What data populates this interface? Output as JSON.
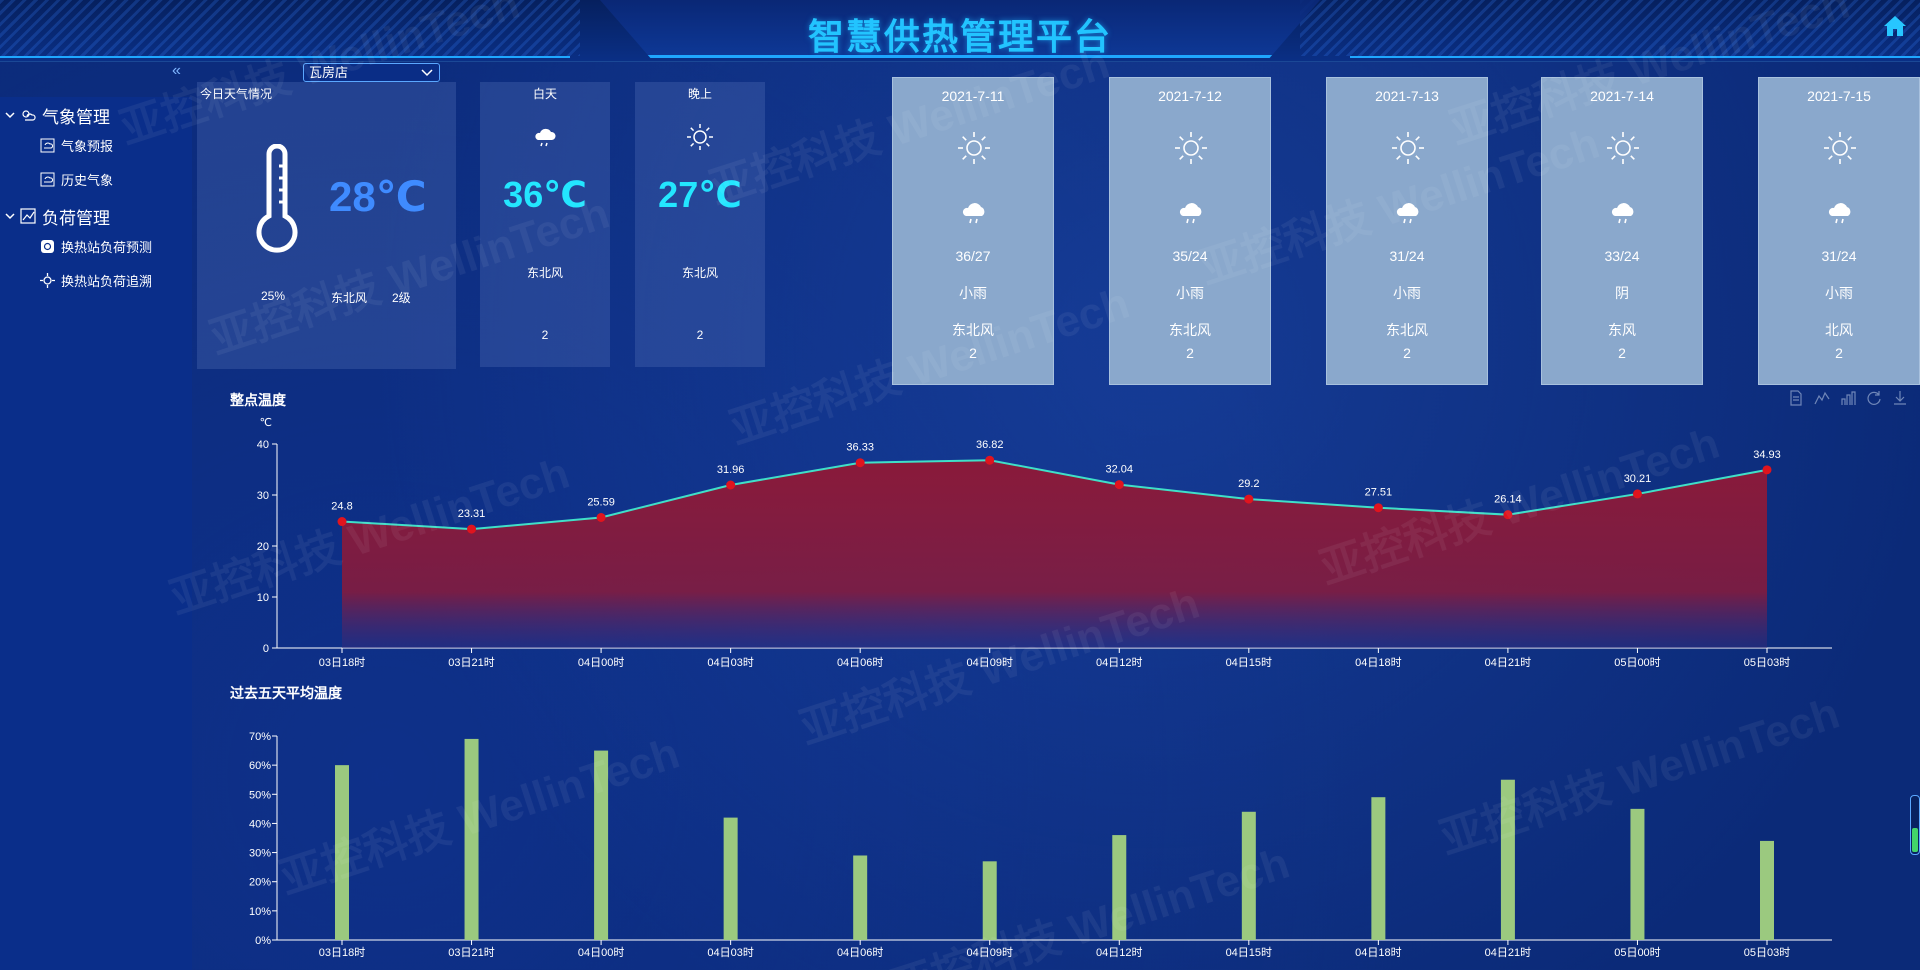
{
  "app": {
    "title": "智慧供热管理平台"
  },
  "city_select": {
    "value": "瓦房店"
  },
  "sidebar": {
    "collapse_icon": "«",
    "groups": [
      {
        "label": "气象管理",
        "icon": "weather-icon",
        "items": [
          {
            "label": "气象预报",
            "icon": "forecast-icon"
          },
          {
            "label": "历史气象",
            "icon": "history-icon"
          }
        ]
      },
      {
        "label": "负荷管理",
        "icon": "chart-icon",
        "items": [
          {
            "label": "换热站负荷预测",
            "icon": "predict-icon"
          },
          {
            "label": "换热站负荷追溯",
            "icon": "trace-icon"
          }
        ]
      }
    ]
  },
  "today": {
    "title": "今日天气情况",
    "temperature": "28℃",
    "humidity": "25%",
    "wind": "东北风",
    "wind_level": "2级"
  },
  "daytime": {
    "title": "白天",
    "temperature": "36℃",
    "wind": "东北风",
    "level": "2",
    "icon": "light-rain-icon"
  },
  "night": {
    "title": "晚上",
    "temperature": "27℃",
    "wind": "东北风",
    "level": "2",
    "icon": "sun-icon"
  },
  "forecast": [
    {
      "date": "2021-7-11",
      "range": "36/27",
      "condition": "小雨",
      "wind": "东北风",
      "level": "2"
    },
    {
      "date": "2021-7-12",
      "range": "35/24",
      "condition": "小雨",
      "wind": "东北风",
      "level": "2"
    },
    {
      "date": "2021-7-13",
      "range": "31/24",
      "condition": "小雨",
      "wind": "东北风",
      "level": "2"
    },
    {
      "date": "2021-7-14",
      "range": "33/24",
      "condition": "阴",
      "wind": "东风",
      "level": "2"
    },
    {
      "date": "2021-7-15",
      "range": "31/24",
      "condition": "小雨",
      "wind": "北风",
      "level": "2"
    }
  ],
  "watermark": "亚控科技 WellinTech",
  "colors": {
    "accent": "#22c4ff",
    "line": "#3fe0c8",
    "point": "#e0141e",
    "area": "#8a1a3a",
    "bar": "#9bc97f"
  },
  "chart_data": [
    {
      "type": "line",
      "title": "整点温度",
      "ylabel": "℃",
      "categories": [
        "03日18时",
        "03日21时",
        "04日00时",
        "04日03时",
        "04日06时",
        "04日09时",
        "04日12时",
        "04日15时",
        "04日18时",
        "04日21时",
        "05日00时",
        "05日03时"
      ],
      "values": [
        24.8,
        23.31,
        25.59,
        31.96,
        36.33,
        36.82,
        32.04,
        29.2,
        27.51,
        26.14,
        30.21,
        34.93
      ],
      "ylim": [
        0,
        40
      ],
      "yticks": [
        0,
        10,
        20,
        30,
        40
      ],
      "area_fill": true
    },
    {
      "type": "bar",
      "title": "过去五天平均温度",
      "categories": [
        "03日18时",
        "03日21时",
        "04日00时",
        "04日03时",
        "04日06时",
        "04日09时",
        "04日12时",
        "04日15时",
        "04日18时",
        "04日21时",
        "05日00时",
        "05日03时"
      ],
      "values": [
        60,
        69,
        65,
        42,
        29,
        27,
        36,
        44,
        49,
        55,
        45,
        34
      ],
      "ylim": [
        0,
        70
      ],
      "yticks": [
        "0%",
        "10%",
        "20%",
        "30%",
        "40%",
        "50%",
        "60%",
        "70%"
      ]
    }
  ]
}
